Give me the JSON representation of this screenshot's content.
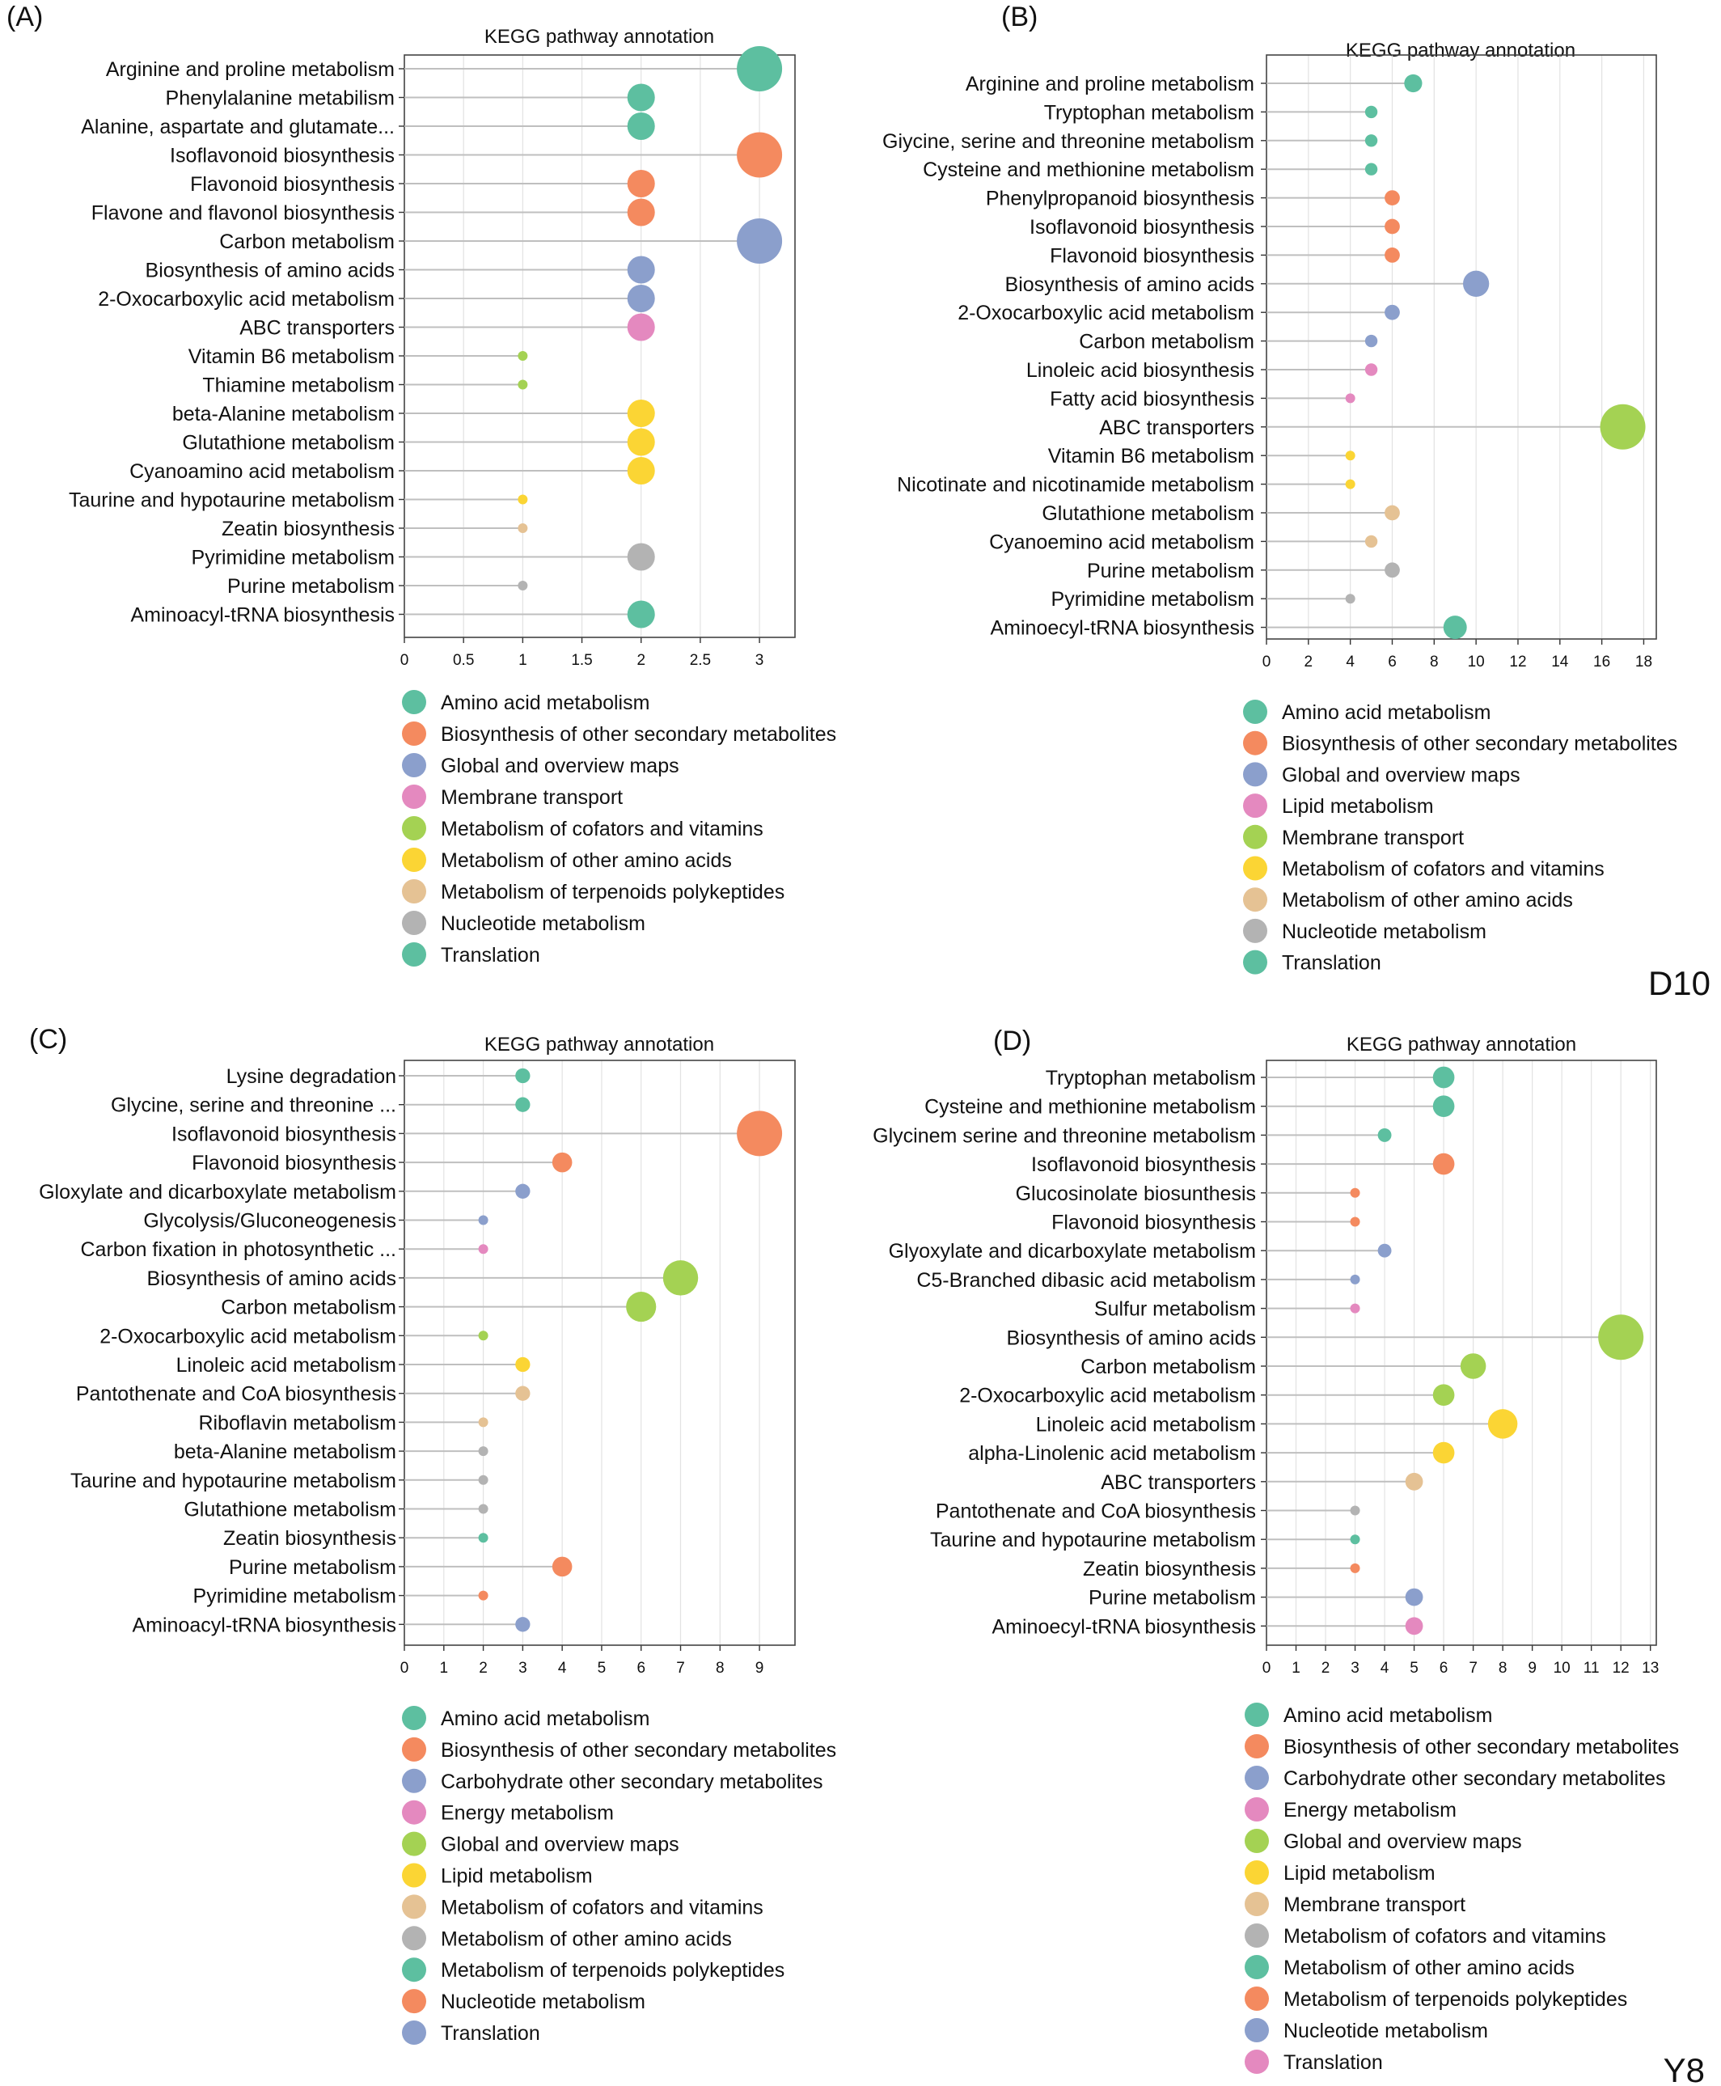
{
  "colors": {
    "teal": "#5dbfa0",
    "orange": "#f48a5f",
    "blue": "#8b9fcc",
    "pink": "#e489bf",
    "green": "#a4d253",
    "yellow": "#fbd534",
    "tan": "#e5c294",
    "gray": "#b3b3b3"
  },
  "chart_data": [
    {
      "panel": "(A)",
      "type": "scatter",
      "title": "KEGG pathway annotation",
      "xlim": [
        0,
        3.3
      ],
      "xticks": [
        "0",
        "0.5",
        "1",
        "1.5",
        "2",
        "2.5",
        "3"
      ],
      "grid": true,
      "legend_position": "below",
      "points": [
        {
          "label": "Arginine and proline metabolism",
          "value": 3,
          "color": "teal"
        },
        {
          "label": "Phenylalanine metabilism",
          "value": 2,
          "color": "teal"
        },
        {
          "label": "Alanine, aspartate and glutamate...",
          "value": 2,
          "color": "teal"
        },
        {
          "label": "Isoflavonoid biosynthesis",
          "value": 3,
          "color": "orange"
        },
        {
          "label": "Flavonoid biosynthesis",
          "value": 2,
          "color": "orange"
        },
        {
          "label": "Flavone and flavonol biosynthesis",
          "value": 2,
          "color": "orange"
        },
        {
          "label": "Carbon metabolism",
          "value": 3,
          "color": "blue"
        },
        {
          "label": "Biosynthesis of amino acids",
          "value": 2,
          "color": "blue"
        },
        {
          "label": "2-Oxocarboxylic acid metabolism",
          "value": 2,
          "color": "blue"
        },
        {
          "label": "ABC transporters",
          "value": 2,
          "color": "pink"
        },
        {
          "label": "Vitamin B6 metabolism",
          "value": 1,
          "color": "green"
        },
        {
          "label": "Thiamine metabolism",
          "value": 1,
          "color": "green"
        },
        {
          "label": "beta-Alanine metabolism",
          "value": 2,
          "color": "yellow"
        },
        {
          "label": "Glutathione metabolism",
          "value": 2,
          "color": "yellow"
        },
        {
          "label": "Cyanoamino acid metabolism",
          "value": 2,
          "color": "yellow"
        },
        {
          "label": "Taurine and hypotaurine metabolism",
          "value": 1,
          "color": "yellow"
        },
        {
          "label": "Zeatin biosynthesis",
          "value": 1,
          "color": "tan"
        },
        {
          "label": "Pyrimidine metabolism",
          "value": 2,
          "color": "gray"
        },
        {
          "label": "Purine metabolism",
          "value": 1,
          "color": "gray"
        },
        {
          "label": "Aminoacyl-tRNA biosynthesis",
          "value": 2,
          "color": "teal"
        }
      ],
      "legend": [
        {
          "label": "Amino acid metabolism",
          "color": "teal"
        },
        {
          "label": "Biosynthesis of other secondary metabolites",
          "color": "orange"
        },
        {
          "label": "Global and overview maps",
          "color": "blue"
        },
        {
          "label": "Membrane transport",
          "color": "pink"
        },
        {
          "label": "Metabolism of cofators and vitamins",
          "color": "green"
        },
        {
          "label": "Metabolism of other amino acids",
          "color": "yellow"
        },
        {
          "label": "Metabolism of terpenoids polykeptides",
          "color": "tan"
        },
        {
          "label": "Nucleotide metabolism",
          "color": "gray"
        },
        {
          "label": "Translation",
          "color": "teal"
        }
      ]
    },
    {
      "panel": "(B)",
      "type": "scatter",
      "title": "KEGG pathway annotation",
      "xlim": [
        0,
        18.6
      ],
      "xticks": [
        "0",
        "2",
        "4",
        "6",
        "8",
        "10",
        "12",
        "14",
        "16",
        "18"
      ],
      "grid": true,
      "legend_position": "below",
      "points": [
        {
          "label": "Arginine and proline metabolism",
          "value": 7,
          "color": "teal"
        },
        {
          "label": "Tryptophan metabolism",
          "value": 5,
          "color": "teal"
        },
        {
          "label": "Giycine, serine and threonine metabolism",
          "value": 5,
          "color": "teal"
        },
        {
          "label": "Cysteine and methionine metabolism",
          "value": 5,
          "color": "teal"
        },
        {
          "label": "Phenylpropanoid biosynthesis",
          "value": 6,
          "color": "orange"
        },
        {
          "label": "Isoflavonoid biosynthesis",
          "value": 6,
          "color": "orange"
        },
        {
          "label": "Flavonoid biosynthesis",
          "value": 6,
          "color": "orange"
        },
        {
          "label": "Biosynthesis of amino acids",
          "value": 10,
          "color": "blue"
        },
        {
          "label": "2-Oxocarboxylic acid metabolism",
          "value": 6,
          "color": "blue"
        },
        {
          "label": "Carbon metabolism",
          "value": 5,
          "color": "blue"
        },
        {
          "label": "Linoleic acid biosynthesis",
          "value": 5,
          "color": "pink"
        },
        {
          "label": "Fatty acid biosynthesis",
          "value": 4,
          "color": "pink"
        },
        {
          "label": "ABC transporters",
          "value": 17,
          "color": "green"
        },
        {
          "label": "Vitamin B6 metabolism",
          "value": 4,
          "color": "yellow"
        },
        {
          "label": "Nicotinate and nicotinamide metabolism",
          "value": 4,
          "color": "yellow"
        },
        {
          "label": "Glutathione metabolism",
          "value": 6,
          "color": "tan"
        },
        {
          "label": "Cyanoemino acid metabolism",
          "value": 5,
          "color": "tan"
        },
        {
          "label": "Purine metabolism",
          "value": 6,
          "color": "gray"
        },
        {
          "label": "Pyrimidine metabolism",
          "value": 4,
          "color": "gray"
        },
        {
          "label": "Aminoecyl-tRNA biosynthesis",
          "value": 9,
          "color": "teal"
        }
      ],
      "legend": [
        {
          "label": "Amino acid metabolism",
          "color": "teal"
        },
        {
          "label": "Biosynthesis of other secondary metabolites",
          "color": "orange"
        },
        {
          "label": "Global and overview maps",
          "color": "blue"
        },
        {
          "label": "Lipid metabolism",
          "color": "pink"
        },
        {
          "label": "Membrane transport",
          "color": "green"
        },
        {
          "label": "Metabolism of cofators and vitamins",
          "color": "yellow"
        },
        {
          "label": "Metabolism of other amino acids",
          "color": "tan"
        },
        {
          "label": "Nucleotide metabolism",
          "color": "gray"
        },
        {
          "label": "Translation",
          "color": "teal"
        }
      ]
    },
    {
      "panel": "(C)",
      "type": "scatter",
      "title": "KEGG pathway annotation",
      "xlim": [
        0,
        9.9
      ],
      "xticks": [
        "0",
        "1",
        "2",
        "3",
        "4",
        "5",
        "6",
        "7",
        "8",
        "9"
      ],
      "grid": true,
      "legend_position": "below",
      "points": [
        {
          "label": "Lysine degradation",
          "value": 3,
          "color": "teal"
        },
        {
          "label": "Glycine, serine and threonine ...",
          "value": 3,
          "color": "teal"
        },
        {
          "label": "Isoflavonoid biosynthesis",
          "value": 9,
          "color": "orange"
        },
        {
          "label": "Flavonoid biosynthesis",
          "value": 4,
          "color": "orange"
        },
        {
          "label": "Gloxylate and dicarboxylate metabolism",
          "value": 3,
          "color": "blue"
        },
        {
          "label": "Glycolysis/Gluconeogenesis",
          "value": 2,
          "color": "blue"
        },
        {
          "label": "Carbon fixation in photosynthetic ...",
          "value": 2,
          "color": "pink"
        },
        {
          "label": "Biosynthesis of amino acids",
          "value": 7,
          "color": "green"
        },
        {
          "label": "Carbon metabolism",
          "value": 6,
          "color": "green"
        },
        {
          "label": "2-Oxocarboxylic acid metabolism",
          "value": 2,
          "color": "green"
        },
        {
          "label": "Linoleic acid metabolism",
          "value": 3,
          "color": "yellow"
        },
        {
          "label": "Pantothenate and CoA biosynthesis",
          "value": 3,
          "color": "tan"
        },
        {
          "label": "Riboflavin metabolism",
          "value": 2,
          "color": "tan"
        },
        {
          "label": "beta-Alanine metabolism",
          "value": 2,
          "color": "gray"
        },
        {
          "label": "Taurine and hypotaurine metabolism",
          "value": 2,
          "color": "gray"
        },
        {
          "label": "Glutathione metabolism",
          "value": 2,
          "color": "gray"
        },
        {
          "label": "Zeatin biosynthesis",
          "value": 2,
          "color": "teal"
        },
        {
          "label": "Purine metabolism",
          "value": 4,
          "color": "orange"
        },
        {
          "label": "Pyrimidine metabolism",
          "value": 2,
          "color": "orange"
        },
        {
          "label": "Aminoacyl-tRNA biosynthesis",
          "value": 3,
          "color": "blue"
        }
      ],
      "legend": [
        {
          "label": "Amino acid metabolism",
          "color": "teal"
        },
        {
          "label": "Biosynthesis of other secondary metabolites",
          "color": "orange"
        },
        {
          "label": "Carbohydrate other secondary metabolites",
          "color": "blue"
        },
        {
          "label": "Energy metabolism",
          "color": "pink"
        },
        {
          "label": "Global and overview maps",
          "color": "green"
        },
        {
          "label": "Lipid metabolism",
          "color": "yellow"
        },
        {
          "label": "Metabolism of cofators and vitamins",
          "color": "tan"
        },
        {
          "label": "Metabolism of other amino acids",
          "color": "gray"
        },
        {
          "label": "Metabolism of terpenoids polykeptides",
          "color": "teal"
        },
        {
          "label": "Nucleotide metabolism",
          "color": "orange"
        },
        {
          "label": "Translation",
          "color": "blue"
        }
      ]
    },
    {
      "panel": "(D)",
      "type": "scatter",
      "title": "KEGG pathway annotation",
      "xlim": [
        0,
        13.2
      ],
      "xticks": [
        "0",
        "1",
        "2",
        "3",
        "4",
        "5",
        "6",
        "7",
        "8",
        "9",
        "10",
        "11",
        "12",
        "13"
      ],
      "grid": true,
      "legend_position": "below",
      "points": [
        {
          "label": "Tryptophan metabolism",
          "value": 6,
          "color": "teal"
        },
        {
          "label": "Cysteine and methionine metabolism",
          "value": 6,
          "color": "teal"
        },
        {
          "label": "Glycinem serine and threonine metabolism",
          "value": 4,
          "color": "teal"
        },
        {
          "label": "Isoflavonoid biosynthesis",
          "value": 6,
          "color": "orange"
        },
        {
          "label": "Glucosinolate biosunthesis",
          "value": 3,
          "color": "orange"
        },
        {
          "label": "Flavonoid biosynthesis",
          "value": 3,
          "color": "orange"
        },
        {
          "label": "Glyoxylate and dicarboxylate metabolism",
          "value": 4,
          "color": "blue"
        },
        {
          "label": "C5-Branched dibasic acid metabolism",
          "value": 3,
          "color": "blue"
        },
        {
          "label": "Sulfur metabolism",
          "value": 3,
          "color": "pink"
        },
        {
          "label": "Biosynthesis of amino acids",
          "value": 12,
          "color": "green"
        },
        {
          "label": "Carbon metabolism",
          "value": 7,
          "color": "green"
        },
        {
          "label": "2-Oxocarboxylic acid metabolism",
          "value": 6,
          "color": "green"
        },
        {
          "label": "Linoleic acid metabolism",
          "value": 8,
          "color": "yellow"
        },
        {
          "label": "alpha-Linolenic acid metabolism",
          "value": 6,
          "color": "yellow"
        },
        {
          "label": "ABC transporters",
          "value": 5,
          "color": "tan"
        },
        {
          "label": "Pantothenate and CoA biosynthesis",
          "value": 3,
          "color": "gray"
        },
        {
          "label": "Taurine and hypotaurine metabolism",
          "value": 3,
          "color": "teal"
        },
        {
          "label": "Zeatin biosynthesis",
          "value": 3,
          "color": "orange"
        },
        {
          "label": "Purine metabolism",
          "value": 5,
          "color": "blue"
        },
        {
          "label": "Aminoecyl-tRNA biosynthesis",
          "value": 5,
          "color": "pink"
        }
      ],
      "legend": [
        {
          "label": "Amino acid metabolism",
          "color": "teal"
        },
        {
          "label": "Biosynthesis of other secondary metabolites",
          "color": "orange"
        },
        {
          "label": "Carbohydrate other secondary metabolites",
          "color": "blue"
        },
        {
          "label": "Energy metabolism",
          "color": "pink"
        },
        {
          "label": "Global and overview maps",
          "color": "green"
        },
        {
          "label": "Lipid metabolism",
          "color": "yellow"
        },
        {
          "label": "Membrane transport",
          "color": "tan"
        },
        {
          "label": "Metabolism of cofators and vitamins",
          "color": "gray"
        },
        {
          "label": "Metabolism of other amino acids",
          "color": "teal"
        },
        {
          "label": "Metabolism of terpenoids polykeptides",
          "color": "orange"
        },
        {
          "label": "Nucleotide metabolism",
          "color": "blue"
        },
        {
          "label": "Translation",
          "color": "pink"
        }
      ]
    }
  ],
  "corner_labels": {
    "b": "D10",
    "d": "Y8"
  }
}
